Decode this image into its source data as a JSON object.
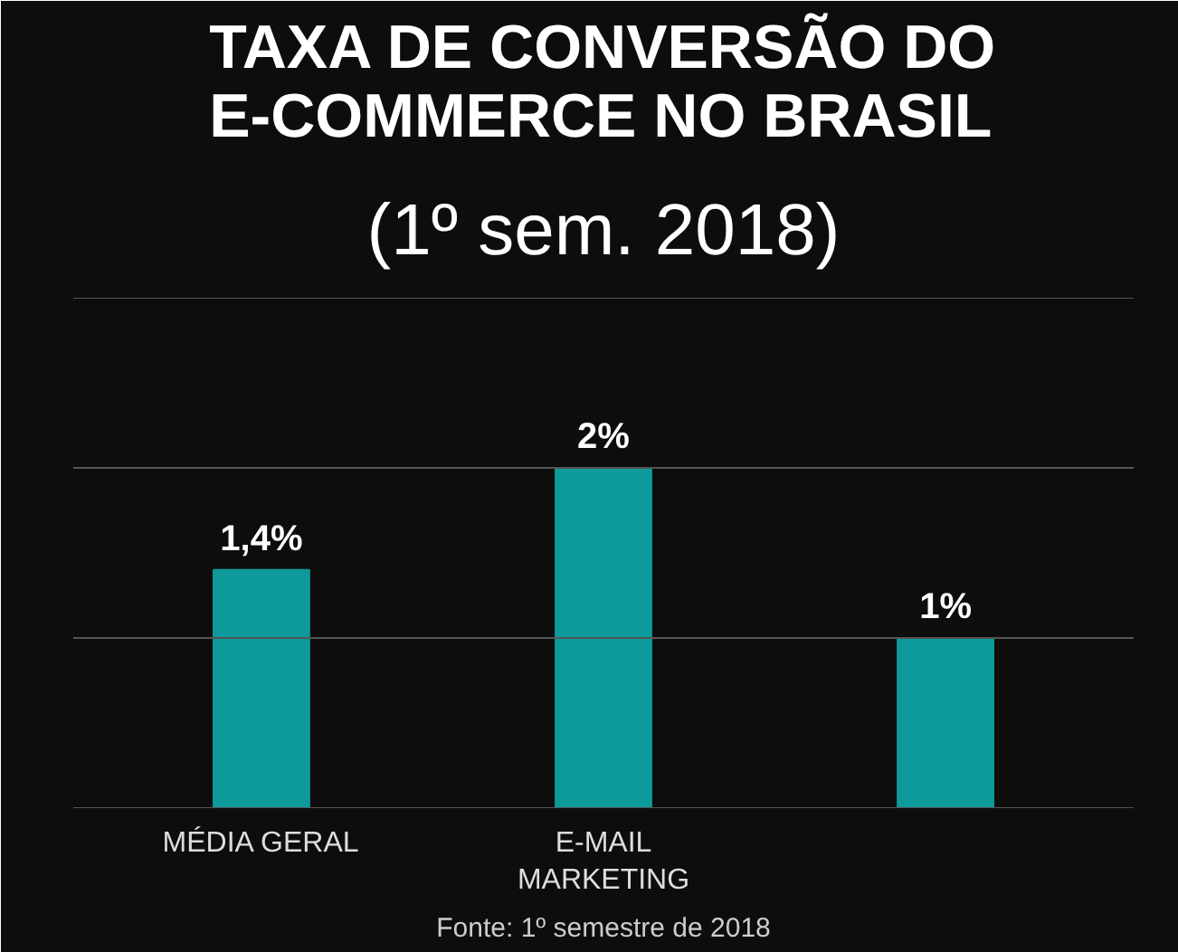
{
  "chart_data": {
    "type": "bar",
    "title": "TAXA DE CONVERSÃO DO E-COMMERCE NO BRASIL",
    "subtitle": "(1º sem. 2018)",
    "categories": [
      "MÉDIA GERAL",
      "E-MAIL MARKETING",
      null
    ],
    "values": [
      1.4,
      2,
      1
    ],
    "value_labels": [
      "1,4%",
      "2%",
      "1%"
    ],
    "color": "#0e9a9a",
    "ylim": [
      0,
      3
    ],
    "yticks": [
      {
        "value": 0,
        "label": null
      },
      {
        "value": 1,
        "label": null
      },
      {
        "value": 2,
        "label": null
      },
      {
        "value": 3,
        "label": null
      }
    ],
    "grid": "y",
    "tick_labels": "x",
    "annotations": [
      "Fonte: 1º semestre de 2018"
    ]
  }
}
